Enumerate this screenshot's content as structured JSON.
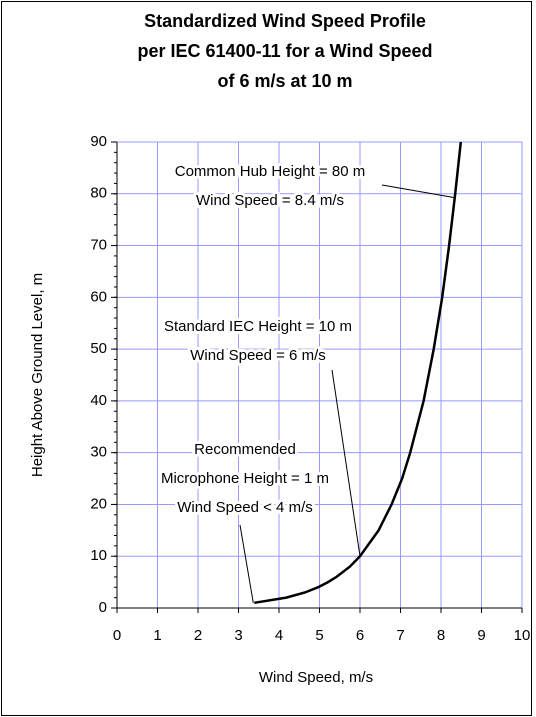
{
  "chart_data": {
    "type": "line",
    "title": [
      "Standardized Wind Speed Profile",
      "per IEC 61400-11 for a Wind Speed",
      "of 6 m/s at 10 m"
    ],
    "x_label": "Wind Speed, m/s",
    "y_label": "Height Above Ground Level, m",
    "xlim": [
      0,
      10
    ],
    "xticks": [
      0,
      1,
      2,
      3,
      4,
      5,
      6,
      7,
      8,
      9,
      10
    ],
    "ylim": [
      0,
      90
    ],
    "yticks": [
      0,
      10,
      20,
      30,
      40,
      50,
      60,
      70,
      80,
      90
    ],
    "grid": true,
    "grid_color": "#9999ff",
    "series": [
      {
        "color": "#000000",
        "x": [
          3.39,
          4.18,
          4.64,
          4.96,
          5.21,
          5.42,
          5.75,
          6.0,
          6.46,
          6.78,
          7.04,
          7.24,
          7.57,
          7.82,
          8.03,
          8.2,
          8.35,
          8.49
        ],
        "values": [
          1,
          2,
          3,
          4,
          5,
          6,
          8,
          10,
          15,
          20,
          25,
          30,
          40,
          50,
          60,
          70,
          80,
          90
        ]
      }
    ],
    "annotations": [
      {
        "lines": [
          "Common Hub  Height = 80 m",
          "Wind Speed = 8.4 m/s"
        ]
      },
      {
        "lines": [
          "Standard IEC Height = 10 m",
          "Wind Speed = 6 m/s"
        ]
      },
      {
        "lines": [
          "Recommended",
          "Microphone Height = 1 m",
          "Wind Speed < 4 m/s"
        ]
      }
    ]
  }
}
